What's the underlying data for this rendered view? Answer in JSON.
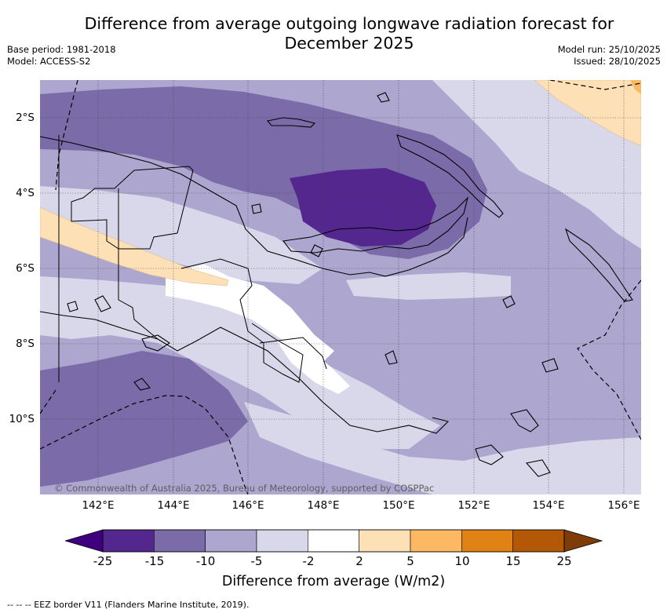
{
  "title_line1": "Difference from average outgoing longwave radiation forecast for",
  "title_line2": "December 2025",
  "base_period": "Base period: 1981-2018",
  "model": "Model: ACCESS-S2",
  "model_run": "Model run: 25/10/2025",
  "issued": "Issued: 28/10/2025",
  "copyright": "© Commonwealth of Australia 2025, Bureau of Meteorology, supported by COSPPac",
  "lon_labels": [
    "142°E",
    "144°E",
    "146°E",
    "148°E",
    "150°E",
    "152°E",
    "154°E",
    "156°E"
  ],
  "lat_labels": [
    "2°S",
    "4°S",
    "6°S",
    "8°S",
    "10°S"
  ],
  "colorbar": {
    "ticks": [
      "-25",
      "-15",
      "-10",
      "-5",
      "-2",
      "2",
      "5",
      "10",
      "15",
      "25"
    ],
    "title": "Difference from average (W/m2)",
    "colors": [
      "#54278f",
      "#7b6ba8",
      "#ada6cf",
      "#d8d8ea",
      "#ffffff",
      "#fee0b6",
      "#fdb863",
      "#e08214",
      "#b35806"
    ],
    "under_color": "#3f007d",
    "over_color": "#7f3b08"
  },
  "legend_eez": "--  --  -- EEZ border V11 (Flanders Marine Institute, 2019)."
}
